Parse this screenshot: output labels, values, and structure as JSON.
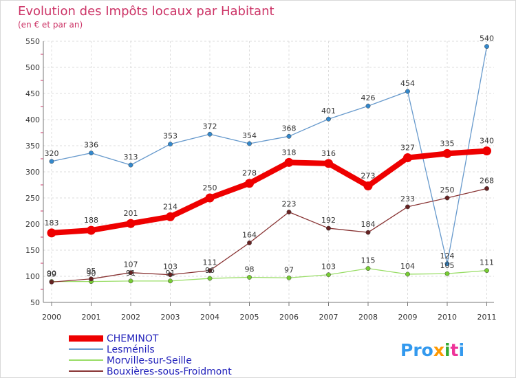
{
  "chart_data": {
    "type": "line",
    "title": "Evolution des Impôts locaux par Habitant",
    "subtitle": "(en € et par an)",
    "categories": [
      "2000",
      "2001",
      "2002",
      "2003",
      "2004",
      "2005",
      "2006",
      "2007",
      "2008",
      "2009",
      "2010",
      "2011"
    ],
    "ylim": [
      50,
      550
    ],
    "yticks": [
      50,
      100,
      150,
      200,
      250,
      300,
      350,
      400,
      450,
      500,
      550
    ],
    "grid": true,
    "legend_position": "bottom-left",
    "series": [
      {
        "name": "CHEMINOT",
        "color": "#ee0000",
        "values": [
          183,
          188,
          201,
          214,
          250,
          278,
          318,
          316,
          273,
          327,
          335,
          340
        ],
        "labels": [
          "183",
          "188",
          "201",
          "214",
          "250",
          "278",
          "318",
          "316",
          "273",
          "327",
          "335",
          "340"
        ]
      },
      {
        "name": "Lesménils",
        "color": "#6699cc",
        "values": [
          320,
          336,
          313,
          353,
          372,
          354,
          368,
          401,
          426,
          454,
          124,
          540
        ],
        "labels": [
          "320",
          "336",
          "313",
          "353",
          "372",
          "354",
          "368",
          "401",
          "426",
          "454",
          "124",
          "540"
        ]
      },
      {
        "name": "Morville-sur-Seille",
        "color": "#99dd66",
        "values": [
          90,
          90,
          91,
          91,
          96,
          98,
          97,
          103,
          115,
          104,
          105,
          111
        ],
        "labels": [
          "90",
          "90",
          "91",
          "91",
          "96",
          "98",
          "97",
          "103",
          "115",
          "104",
          "105",
          "111"
        ]
      },
      {
        "name": "Bouxières-sous-Froidmont",
        "color": "#883333",
        "values": [
          89,
          95,
          107,
          103,
          111,
          164,
          223,
          192,
          184,
          233,
          250,
          268
        ],
        "labels": [
          "89",
          "95",
          "107",
          "103",
          "111",
          "164",
          "223",
          "192",
          "184",
          "233",
          "250",
          "268"
        ]
      }
    ]
  },
  "brand": {
    "logo_text": "Proxiti"
  }
}
